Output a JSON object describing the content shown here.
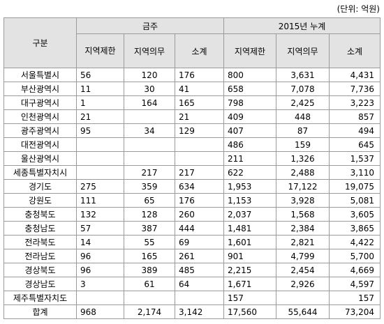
{
  "unit_note": "(단위: 억원)",
  "headers": {
    "region": "구분",
    "group1": "금주",
    "group2": "2015년 누계",
    "cols": [
      "지역제한",
      "지역의무",
      "소계",
      "지역제한",
      "지역의무",
      "소계"
    ]
  },
  "rows": [
    {
      "region": "서울특별시",
      "values": [
        "56",
        "120",
        "176",
        "800",
        "3,631",
        "4,431"
      ]
    },
    {
      "region": "부산광역시",
      "values": [
        "11",
        "30",
        "41",
        "658",
        "7,078",
        "7,736"
      ]
    },
    {
      "region": "대구광역시",
      "values": [
        "1",
        "164",
        "165",
        "798",
        "2,425",
        "3,223"
      ]
    },
    {
      "region": "인천광역시",
      "values": [
        "21",
        "",
        "21",
        "409",
        "448",
        "857"
      ]
    },
    {
      "region": "광주광역시",
      "values": [
        "95",
        "34",
        "129",
        "407",
        "87",
        "494"
      ]
    },
    {
      "region": "대전광역시",
      "values": [
        "",
        "",
        "",
        "486",
        "159",
        "645"
      ]
    },
    {
      "region": "울산광역시",
      "values": [
        "",
        "",
        "",
        "211",
        "1,326",
        "1,537"
      ]
    },
    {
      "region": "세종특별자치시",
      "values": [
        "",
        "217",
        "217",
        "622",
        "2,488",
        "3,110"
      ]
    },
    {
      "region": "경기도",
      "values": [
        "275",
        "359",
        "634",
        "1,953",
        "17,122",
        "19,075"
      ]
    },
    {
      "region": "강원도",
      "values": [
        "111",
        "65",
        "176",
        "1,153",
        "3,928",
        "5,081"
      ]
    },
    {
      "region": "충청북도",
      "values": [
        "132",
        "128",
        "260",
        "2,037",
        "1,568",
        "3,605"
      ]
    },
    {
      "region": "충청남도",
      "values": [
        "57",
        "387",
        "444",
        "1,481",
        "2,384",
        "3,865"
      ]
    },
    {
      "region": "전라북도",
      "values": [
        "14",
        "55",
        "69",
        "1,601",
        "2,821",
        "4,422"
      ]
    },
    {
      "region": "전라남도",
      "values": [
        "96",
        "165",
        "261",
        "901",
        "4,799",
        "5,700"
      ]
    },
    {
      "region": "경상북도",
      "values": [
        "96",
        "389",
        "485",
        "2,215",
        "2,454",
        "4,669"
      ]
    },
    {
      "region": "경상남도",
      "values": [
        "3",
        "61",
        "64",
        "1,671",
        "2,926",
        "4,597"
      ]
    },
    {
      "region": "제주특별자치도",
      "values": [
        "",
        "",
        "",
        "157",
        "",
        "157"
      ]
    },
    {
      "region": "합계",
      "values": [
        "968",
        "2,174",
        "3,142",
        "17,560",
        "55,644",
        "73,204"
      ]
    }
  ]
}
